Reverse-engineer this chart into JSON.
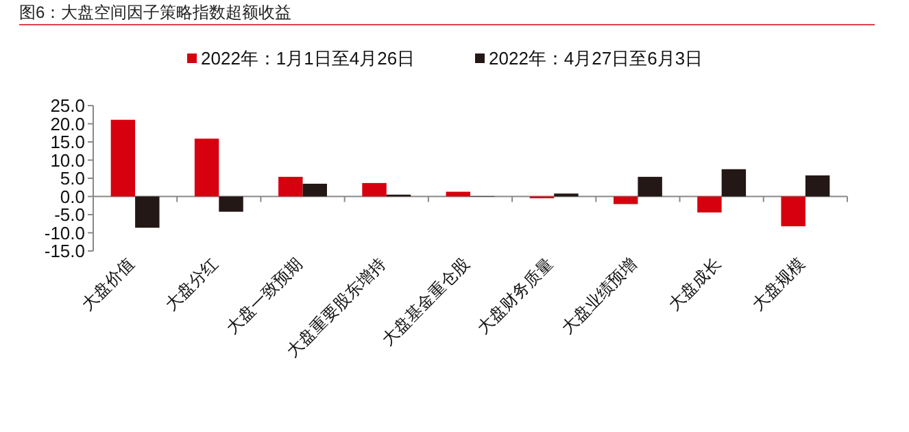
{
  "chart_data": {
    "type": "bar",
    "title": "图6：大盘空间因子策略指数超额收益",
    "categories": [
      "大盘价值",
      "大盘分红",
      "大盘一致预期",
      "大盘重要股东增持",
      "大盘基金重仓股",
      "大盘财务质量",
      "大盘业绩预增",
      "大盘成长",
      "大盘规模"
    ],
    "series": [
      {
        "name": "2022年：1月1日至4月26日",
        "color": "#d7000f",
        "values": [
          21.1,
          15.9,
          5.4,
          3.7,
          1.3,
          -0.5,
          -2.1,
          -4.4,
          -8.2
        ]
      },
      {
        "name": "2022年：4月27日至6月3日",
        "color": "#231815",
        "values": [
          -8.6,
          -4.2,
          3.5,
          0.5,
          0.1,
          0.8,
          5.4,
          7.5,
          5.8
        ]
      }
    ],
    "ylim": [
      -15,
      25
    ],
    "yticks": [
      {
        "value": -15,
        "label": "-15.0"
      },
      {
        "value": -10,
        "label": "-10.0"
      },
      {
        "value": -5,
        "label": "-5.0"
      },
      {
        "value": 0,
        "label": "0.0"
      },
      {
        "value": 5,
        "label": "5.0"
      },
      {
        "value": 10,
        "label": "10.0"
      },
      {
        "value": 15,
        "label": "15.0"
      },
      {
        "value": 20,
        "label": "20.0"
      },
      {
        "value": 25,
        "label": "25.0"
      }
    ],
    "legend": "top"
  }
}
